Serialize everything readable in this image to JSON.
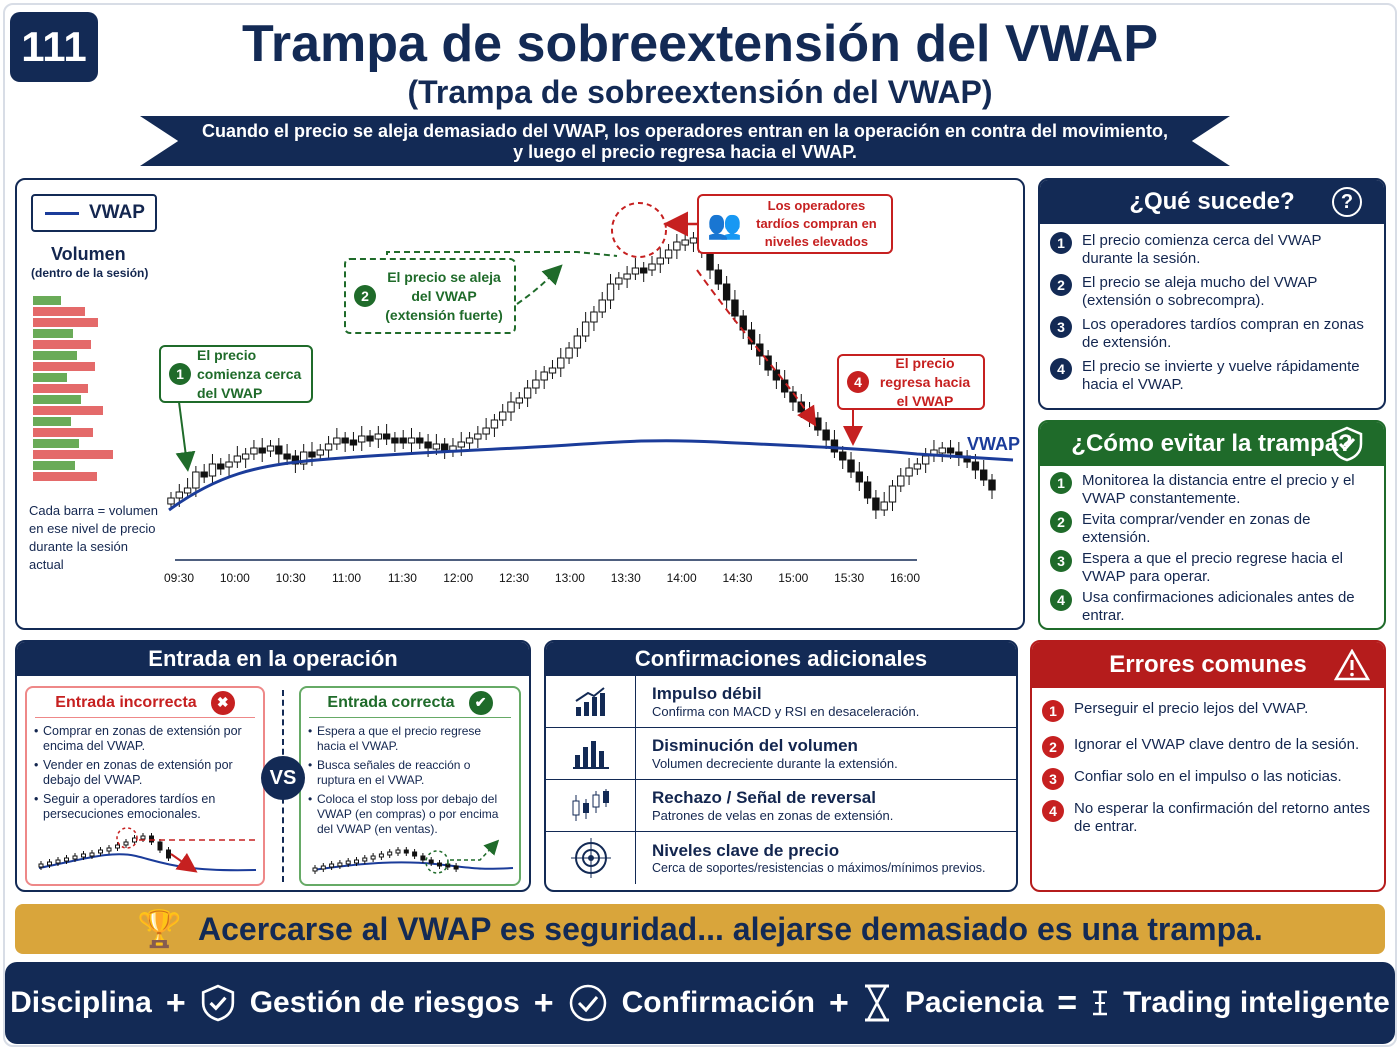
{
  "header": {
    "badge": "111",
    "title": "Trampa de sobreextensión del VWAP",
    "subtitle": "(Trampa de sobreextensión del VWAP)",
    "ribbon_line1": "Cuando el precio se aleja demasiado del VWAP, los operadores entran en la operación en contra del movimiento,",
    "ribbon_line2": "y luego el precio regresa hacia el VWAP."
  },
  "chart": {
    "legend": "VWAP",
    "volume_title": "Volumen",
    "volume_subtitle": "(dentro de la sesión)",
    "volume_note": "Cada barra = volumen en ese nivel de precio durante la sesión actual",
    "vwap_label": "VWAP",
    "callout1_num": "1",
    "callout1": "El precio comienza cerca del VWAP",
    "callout2_num": "2",
    "callout2": "El precio se aleja del VWAP (extensión fuerte)",
    "callout3": "Los operadores tardíos compran en niveles elevados",
    "callout4_num": "4",
    "callout4": "El precio regresa hacia el VWAP"
  },
  "chart_data": {
    "type": "line",
    "x": [
      "09:30",
      "10:00",
      "10:30",
      "11:00",
      "11:30",
      "12:00",
      "12:30",
      "13:00",
      "13:30",
      "14:00",
      "14:30",
      "15:00",
      "15:30",
      "16:00"
    ],
    "series": [
      {
        "name": "VWAP"
      }
    ],
    "volume_profile_colors": [
      "green",
      "red",
      "red",
      "green",
      "red",
      "green",
      "red",
      "green",
      "red",
      "green",
      "red",
      "green",
      "red",
      "green",
      "red",
      "green",
      "red"
    ]
  },
  "que_sucede": {
    "title": "¿Qué sucede?",
    "items": [
      "El precio comienza cerca del VWAP durante la sesión.",
      "El precio se aleja mucho del VWAP (extensión o sobrecompra).",
      "Los operadores tardíos compran en zonas de extensión.",
      "El precio se invierte y vuelve rápidamente hacia el VWAP."
    ]
  },
  "como_evitar": {
    "title": "¿Cómo evitar la trampa?",
    "items": [
      "Monitorea la distancia entre el precio y el VWAP constantemente.",
      "Evita comprar/vender en zonas de extensión.",
      "Espera a que el precio regrese hacia el VWAP para operar.",
      "Usa confirmaciones adicionales antes de entrar."
    ]
  },
  "entrada": {
    "title": "Entrada en la operación",
    "wrong_title": "Entrada incorrecta",
    "wrong_items": [
      "Comprar en zonas de extensión por encima del VWAP.",
      "Vender en zonas de extensión por debajo del VWAP.",
      "Seguir a operadores tardíos en persecuciones emocionales."
    ],
    "vs": "VS",
    "right_title": "Entrada correcta",
    "right_items": [
      "Espera a que el precio regrese hacia el VWAP.",
      "Busca señales de reacción o ruptura en el VWAP.",
      "Coloca el stop loss por debajo del VWAP (en compras) o por encima del VWAP (en ventas)."
    ]
  },
  "confirmaciones": {
    "title": "Confirmaciones adicionales",
    "rows": [
      {
        "title": "Impulso débil",
        "desc": "Confirma con MACD y RSI en desaceleración."
      },
      {
        "title": "Disminución del volumen",
        "desc": "Volumen decreciente durante la extensión."
      },
      {
        "title": "Rechazo / Señal de reversal",
        "desc": "Patrones de velas en zonas de extensión."
      },
      {
        "title": "Niveles clave de precio",
        "desc": "Cerca de soportes/resistencias o máximos/mínimos previos."
      }
    ]
  },
  "errores": {
    "title": "Errores comunes",
    "items": [
      "Perseguir el precio lejos del VWAP.",
      "Ignorar el VWAP clave dentro de la sesión.",
      "Confiar solo en el impulso o las noticias.",
      "No esperar la confirmación del retorno antes de entrar."
    ]
  },
  "banner": "Acercarse al VWAP es seguridad... alejarse demasiado es una trampa.",
  "footer": {
    "w1": "Disciplina",
    "w2": "Gestión de riesgos",
    "w3": "Confirmación",
    "w4": "Paciencia",
    "w5": "Trading inteligente",
    "plus": "+",
    "eq": "="
  },
  "colors": {
    "navy": "#132a55",
    "green": "#1f6b2a",
    "red": "#c62020",
    "gold": "#d9a53b",
    "vwap": "#1b3c9a"
  }
}
